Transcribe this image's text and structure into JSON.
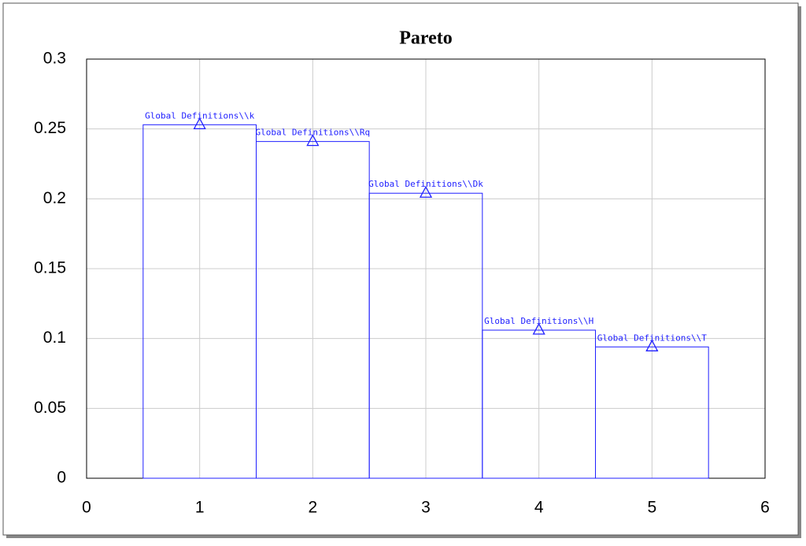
{
  "chart_data": {
    "type": "bar",
    "title": "Pareto",
    "x": [
      1,
      2,
      3,
      4,
      5
    ],
    "values": [
      0.253,
      0.241,
      0.204,
      0.106,
      0.094
    ],
    "point_labels": [
      "Global Definitions\\\\k",
      "Global Definitions\\\\Rq",
      "Global Definitions\\\\Dk",
      "Global Definitions\\\\H",
      "Global Definitions\\\\T"
    ],
    "color": "#2020ff",
    "xlim": [
      0,
      6
    ],
    "xticks": [
      0,
      1,
      2,
      3,
      4,
      5,
      6
    ],
    "ylim": [
      0,
      0.3
    ],
    "yticks": [
      0,
      0.05,
      0.1,
      0.15,
      0.2,
      0.25,
      0.3
    ],
    "grid": true
  }
}
